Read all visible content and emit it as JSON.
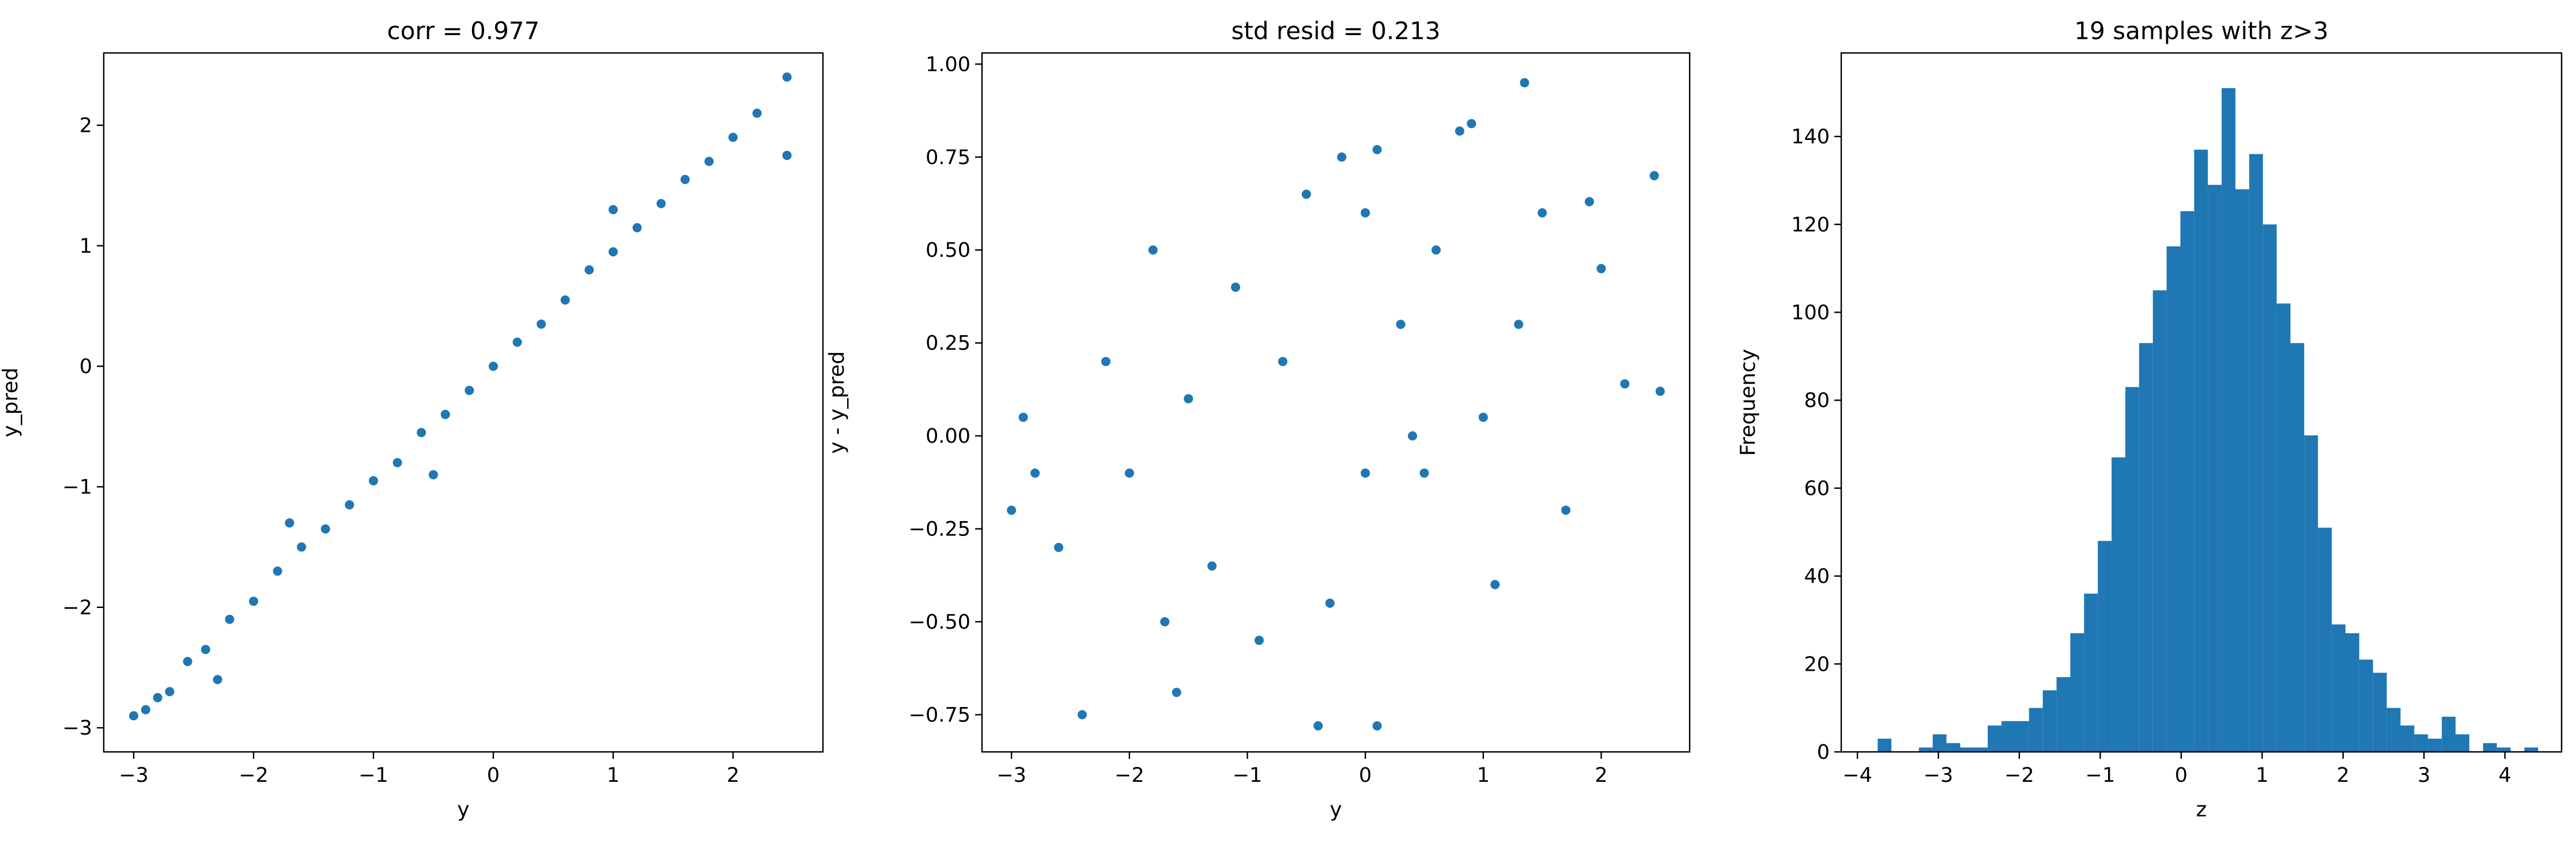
{
  "colors": {
    "series": "#1f77b4",
    "axes": "#000000",
    "background": "#ffffff"
  },
  "chart_data": [
    {
      "type": "scatter",
      "title": "corr = 0.977",
      "xlabel": "y",
      "ylabel": "y_pred",
      "xlim": [
        -3.25,
        2.75
      ],
      "ylim": [
        -3.2,
        2.6
      ],
      "xticks": [
        -3,
        -2,
        -1,
        0,
        1,
        2
      ],
      "yticks": [
        -3,
        -2,
        -1,
        0,
        1,
        2
      ],
      "grid": false,
      "series": [
        {
          "points": [
            [
              -3.0,
              -2.9
            ],
            [
              -2.9,
              -2.85
            ],
            [
              -2.8,
              -2.75
            ],
            [
              -2.7,
              -2.7
            ],
            [
              -2.55,
              -2.45
            ],
            [
              -2.4,
              -2.35
            ],
            [
              -2.2,
              -2.1
            ],
            [
              -2.0,
              -1.95
            ],
            [
              -1.8,
              -1.7
            ],
            [
              -1.6,
              -1.5
            ],
            [
              -1.4,
              -1.35
            ],
            [
              -1.2,
              -1.15
            ],
            [
              -1.0,
              -0.95
            ],
            [
              -0.8,
              -0.8
            ],
            [
              -0.6,
              -0.55
            ],
            [
              -0.4,
              -0.4
            ],
            [
              -0.2,
              -0.2
            ],
            [
              0.0,
              0.0
            ],
            [
              0.2,
              0.2
            ],
            [
              0.4,
              0.35
            ],
            [
              0.6,
              0.55
            ],
            [
              0.8,
              0.8
            ],
            [
              1.0,
              0.95
            ],
            [
              1.2,
              1.15
            ],
            [
              1.4,
              1.35
            ],
            [
              1.6,
              1.55
            ],
            [
              1.8,
              1.7
            ],
            [
              2.0,
              1.9
            ],
            [
              2.2,
              2.1
            ],
            [
              2.45,
              2.4
            ],
            [
              2.45,
              1.75
            ],
            [
              -1.7,
              -1.3
            ],
            [
              -0.5,
              -0.9
            ],
            [
              1.0,
              1.3
            ],
            [
              -2.3,
              -2.6
            ]
          ]
        }
      ]
    },
    {
      "type": "scatter",
      "title": "std resid = 0.213",
      "xlabel": "y",
      "ylabel": "y - y_pred",
      "xlim": [
        -3.25,
        2.75
      ],
      "ylim": [
        -0.85,
        1.03
      ],
      "xticks": [
        -3,
        -2,
        -1,
        0,
        1,
        2
      ],
      "yticks": [
        -0.75,
        -0.5,
        -0.25,
        0.0,
        0.25,
        0.5,
        0.75,
        1.0
      ],
      "grid": false,
      "series": [
        {
          "points": [
            [
              -3.0,
              -0.2
            ],
            [
              -2.9,
              0.05
            ],
            [
              -2.8,
              -0.1
            ],
            [
              -2.6,
              -0.3
            ],
            [
              -2.4,
              -0.75
            ],
            [
              -2.2,
              0.2
            ],
            [
              -2.0,
              -0.1
            ],
            [
              -1.8,
              0.5
            ],
            [
              -1.7,
              -0.5
            ],
            [
              -1.5,
              0.1
            ],
            [
              -1.3,
              -0.35
            ],
            [
              -1.1,
              0.4
            ],
            [
              -0.9,
              -0.55
            ],
            [
              -0.7,
              0.2
            ],
            [
              -0.5,
              0.65
            ],
            [
              -0.3,
              -0.45
            ],
            [
              -0.2,
              0.75
            ],
            [
              0.0,
              0.6
            ],
            [
              0.1,
              0.77
            ],
            [
              0.1,
              -0.78
            ],
            [
              0.3,
              0.3
            ],
            [
              0.5,
              -0.1
            ],
            [
              0.6,
              0.5
            ],
            [
              0.8,
              0.82
            ],
            [
              0.9,
              0.84
            ],
            [
              1.0,
              0.05
            ],
            [
              1.1,
              -0.4
            ],
            [
              1.3,
              0.3
            ],
            [
              1.35,
              0.95
            ],
            [
              1.5,
              0.6
            ],
            [
              1.7,
              -0.2
            ],
            [
              1.9,
              0.63
            ],
            [
              2.0,
              0.45
            ],
            [
              2.2,
              0.14
            ],
            [
              2.45,
              0.7
            ],
            [
              2.5,
              0.12
            ],
            [
              -0.4,
              -0.78
            ],
            [
              -1.6,
              -0.69
            ],
            [
              0.4,
              0.0
            ],
            [
              0.0,
              -0.1
            ]
          ]
        }
      ]
    },
    {
      "type": "bar",
      "title": "19 samples with z>3",
      "xlabel": "z",
      "ylabel": "Frequency",
      "xlim": [
        -4.2,
        4.7
      ],
      "ylim": [
        0,
        159
      ],
      "xticks": [
        -4,
        -3,
        -2,
        -1,
        0,
        1,
        2,
        3,
        4
      ],
      "yticks": [
        0,
        20,
        40,
        60,
        80,
        100,
        120,
        140
      ],
      "grid": false,
      "bin_edges": [
        -3.75,
        -3.58,
        -3.41,
        -3.24,
        -3.07,
        -2.9,
        -2.73,
        -2.56,
        -2.39,
        -2.22,
        -2.05,
        -1.88,
        -1.71,
        -1.54,
        -1.37,
        -1.2,
        -1.03,
        -0.86,
        -0.69,
        -0.52,
        -0.35,
        -0.18,
        -0.01,
        0.16,
        0.33,
        0.5,
        0.67,
        0.84,
        1.01,
        1.18,
        1.35,
        1.52,
        1.69,
        1.86,
        2.03,
        2.2,
        2.37,
        2.54,
        2.71,
        2.88,
        3.05,
        3.22,
        3.39,
        3.56,
        3.73,
        3.9,
        4.07,
        4.24,
        4.41,
        4.58
      ],
      "values": [
        3,
        0,
        0,
        1,
        4,
        2,
        1,
        1,
        6,
        7,
        7,
        10,
        14,
        17,
        27,
        36,
        48,
        67,
        83,
        93,
        105,
        115,
        123,
        137,
        129,
        151,
        128,
        136,
        120,
        102,
        93,
        72,
        51,
        29,
        27,
        21,
        18,
        10,
        6,
        4,
        3,
        8,
        4,
        0,
        2,
        1,
        0,
        1,
        0
      ]
    }
  ]
}
